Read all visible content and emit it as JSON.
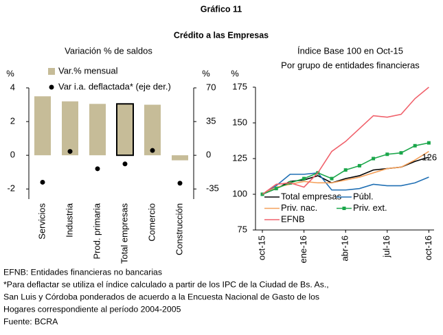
{
  "header": {
    "label": "Gráfico 11",
    "title": "Crédito a las Empresas"
  },
  "chart_data": [
    {
      "type": "bar",
      "title": "Variación % de saldos",
      "y_label": "%",
      "y2_label": "%",
      "categories": [
        "Servicios",
        "Industria",
        "Prod. primaria",
        "Total empresas",
        "Comercio",
        "Construcción"
      ],
      "series": [
        {
          "name": "Var.% mensual",
          "type": "bar",
          "color": "#c6bc98",
          "values": [
            3.5,
            3.2,
            3.05,
            3.05,
            3.0,
            -0.3
          ]
        },
        {
          "name": "Var i.a. deflactada* (eje der.)",
          "type": "scatter",
          "axis": "y2",
          "color": "#000000",
          "values": [
            -28,
            4,
            -14,
            -9,
            5,
            -29
          ]
        }
      ],
      "highlight": "Total empresas",
      "ylim": [
        -2.6,
        4
      ],
      "yticks": [
        -2,
        0,
        2,
        4
      ],
      "y2lim": [
        -45.5,
        70
      ],
      "y2ticks": [
        -35,
        0,
        35,
        70
      ],
      "legend": "upper left"
    },
    {
      "type": "line",
      "title": "Índice Base 100 en Oct-15",
      "subtitle": "Por grupo de entidades financieras",
      "y_label": "%",
      "categories": [
        "oct-15",
        null,
        null,
        "ene-16",
        null,
        null,
        "abr-16",
        null,
        null,
        "jul-16",
        null,
        null,
        "oct-16"
      ],
      "series": [
        {
          "name": "Total empresas",
          "color": "#000000",
          "values": [
            100,
            104,
            109,
            110,
            113,
            108,
            111,
            113,
            117,
            118,
            119,
            123,
            126
          ]
        },
        {
          "name": "Públ.",
          "color": "#1f6fb4",
          "values": [
            100,
            106,
            114,
            114,
            115,
            103,
            103,
            104,
            107,
            106,
            106,
            108,
            112
          ]
        },
        {
          "name": "Priv. nac.",
          "color": "#f5a05a",
          "values": [
            100,
            105,
            107,
            109,
            108,
            108,
            110,
            112,
            115,
            118,
            119,
            124,
            130
          ]
        },
        {
          "name": "Priv. ext.",
          "color": "#1aa64a",
          "marker": "square",
          "values": [
            100,
            104,
            108,
            111,
            115,
            111,
            117,
            120,
            125,
            128,
            129,
            134,
            136
          ]
        },
        {
          "name": "EFNB",
          "color": "#f0606a",
          "values": [
            100,
            107,
            108,
            105,
            115,
            130,
            137,
            146,
            155,
            154,
            156,
            167,
            175
          ]
        }
      ],
      "annotations": [
        {
          "text": "126"
        }
      ],
      "ylim": [
        75,
        175
      ],
      "yticks": [
        75,
        100,
        125,
        150,
        175
      ],
      "legend": "lower left"
    }
  ],
  "notes": [
    "EFNB: Entidades financieras no bancarias",
    "*Para deflactar se utiliza el índice calculado a partir de los IPC de la Ciudad de Bs. As.,",
    "San Luis y Córdoba ponderados de acuerdo a la Encuesta Nacional de Gasto de los",
    "Hogares correspondiente al período 2004-2005",
    "Fuente: BCRA"
  ]
}
